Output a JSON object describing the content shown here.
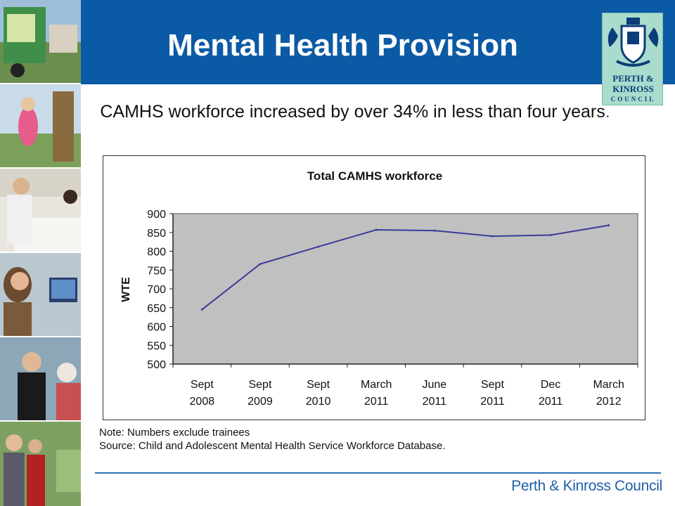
{
  "header": {
    "title": "Mental Health Provision"
  },
  "logo": {
    "line1": "PERTH &",
    "line2": "KINROSS",
    "line3": "COUNCIL",
    "icon": "council-crest-icon"
  },
  "subtitle": {
    "text": "CAMHS workforce increased by over 34% in less than four years",
    "dot": "."
  },
  "chart_data": {
    "type": "line",
    "title": "Total CAMHS workforce",
    "ylabel": "WTE",
    "xlabel": "",
    "categories": [
      [
        "Sept",
        "2008"
      ],
      [
        "Sept",
        "2009"
      ],
      [
        "Sept",
        "2010"
      ],
      [
        "March",
        "2011"
      ],
      [
        "June",
        "2011"
      ],
      [
        "Sept",
        "2011"
      ],
      [
        "Dec",
        "2011"
      ],
      [
        "March",
        "2012"
      ]
    ],
    "series": [
      {
        "values": [
          645,
          766,
          812,
          857,
          855,
          840,
          843,
          869
        ]
      }
    ],
    "ylim": [
      500,
      900
    ],
    "yticks": [
      500,
      550,
      600,
      650,
      700,
      750,
      800,
      850,
      900
    ],
    "grid": false,
    "legend": "none",
    "colors": {
      "plot_bg": "#c0c0c0",
      "line": "#3b3b9a"
    }
  },
  "notes": {
    "note": "Note: Numbers exclude trainees",
    "source": "Source: Child and Adolescent Mental Health Service Workforce Database."
  },
  "footer": {
    "org": "Perth & Kinross Council"
  },
  "colors": {
    "header_bg": "#0b5aa5",
    "footer_text": "#1f5fa8",
    "logo_bg": "#a9dccd"
  }
}
